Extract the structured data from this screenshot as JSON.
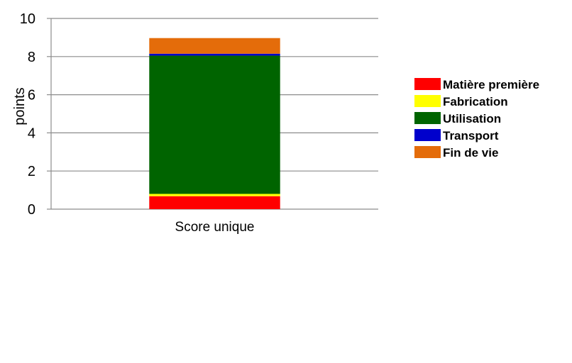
{
  "chart_data": {
    "type": "bar",
    "stacked": true,
    "title": "",
    "xlabel": "",
    "ylabel": "points",
    "ylim": [
      0,
      10
    ],
    "yticks": [
      0,
      2,
      4,
      6,
      8,
      10
    ],
    "grid": true,
    "legend_position": "right",
    "categories": [
      "Score unique"
    ],
    "series": [
      {
        "name": "Matière première",
        "color": "#ff0000",
        "values": [
          0.68
        ]
      },
      {
        "name": "Fabrication",
        "color": "#ffff00",
        "values": [
          0.12
        ]
      },
      {
        "name": "Utilisation",
        "color": "#006400",
        "values": [
          7.25
        ]
      },
      {
        "name": "Transport",
        "color": "#0000cc",
        "values": [
          0.1
        ]
      },
      {
        "name": "Fin de vie",
        "color": "#e46c0a",
        "values": [
          0.82
        ]
      }
    ]
  }
}
